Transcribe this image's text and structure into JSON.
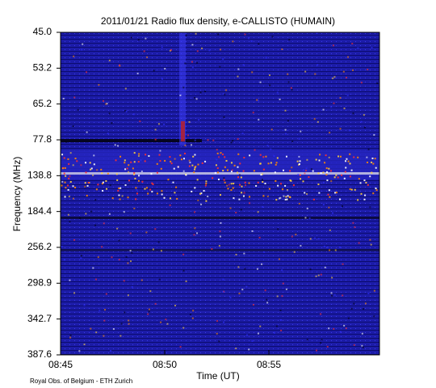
{
  "chart_data": {
    "type": "spectrogram",
    "title": "2011/01/21  Radio flux density, e-CALLISTO (HUMAIN)",
    "xlabel": "Time (UT)",
    "ylabel": "Frequency (MHz)",
    "xticks": [
      "08:45",
      "08:50",
      "08:55"
    ],
    "yticks": [
      "45.0",
      "53.2",
      "65.2",
      "77.8",
      "138.8",
      "184.4",
      "256.2",
      "298.9",
      "342.7",
      "387.6"
    ],
    "credit": "Royal Obs. of Belgium - ETH Zurich"
  }
}
